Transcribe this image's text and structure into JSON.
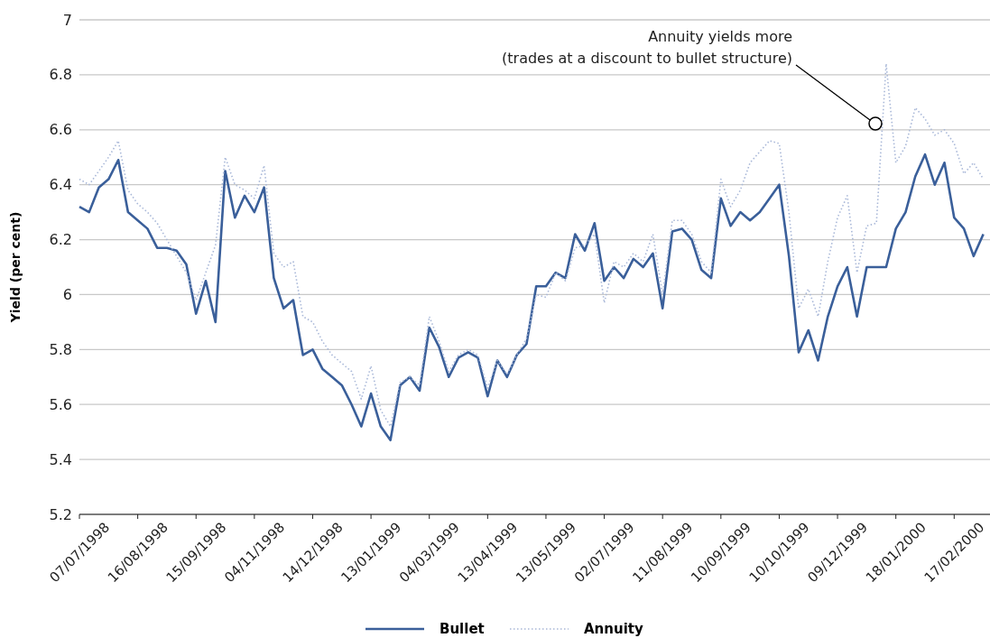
{
  "chart_data": {
    "type": "line",
    "ylabel": "Yield (per cent)",
    "categories": [
      "07/07/1998",
      null,
      null,
      null,
      null,
      null,
      "16/08/1998",
      null,
      null,
      null,
      null,
      null,
      "15/09/1998",
      null,
      null,
      null,
      null,
      null,
      "04/11/1998",
      null,
      null,
      null,
      null,
      null,
      "14/12/1998",
      null,
      null,
      null,
      null,
      null,
      "13/01/1999",
      null,
      null,
      null,
      null,
      null,
      "04/03/1999",
      null,
      null,
      null,
      null,
      null,
      "13/04/1999",
      null,
      null,
      null,
      null,
      null,
      "13/05/1999",
      null,
      null,
      null,
      null,
      null,
      "02/07/1999",
      null,
      null,
      null,
      null,
      null,
      "11/08/1999",
      null,
      null,
      null,
      null,
      null,
      "10/09/1999",
      null,
      null,
      null,
      null,
      null,
      "10/10/1999",
      null,
      null,
      null,
      null,
      null,
      "09/12/1999",
      null,
      null,
      null,
      null,
      null,
      "18/01/2000",
      null,
      null,
      null,
      null,
      null,
      "17/02/2000",
      null,
      null,
      null
    ],
    "series": [
      {
        "name": "Bullet",
        "color": "#3a5f9a",
        "line_style": "solid",
        "values": [
          6.32,
          6.3,
          6.39,
          6.42,
          6.49,
          6.3,
          6.27,
          6.24,
          6.17,
          6.17,
          6.16,
          6.11,
          5.93,
          6.05,
          5.9,
          6.45,
          6.28,
          6.36,
          6.3,
          6.39,
          6.06,
          5.95,
          5.98,
          5.78,
          5.8,
          5.73,
          5.7,
          5.67,
          5.6,
          5.52,
          5.64,
          5.52,
          5.47,
          5.67,
          5.7,
          5.65,
          5.88,
          5.81,
          5.7,
          5.77,
          5.79,
          5.77,
          5.63,
          5.76,
          5.7,
          5.78,
          5.82,
          6.03,
          6.03,
          6.08,
          6.06,
          6.22,
          6.16,
          6.26,
          6.05,
          6.1,
          6.06,
          6.13,
          6.1,
          6.15,
          5.95,
          6.23,
          6.24,
          6.2,
          6.09,
          6.06,
          6.35,
          6.25,
          6.3,
          6.27,
          6.3,
          6.35,
          6.4,
          6.14,
          5.79,
          5.87,
          5.76,
          5.92,
          6.03,
          6.1,
          5.92,
          6.1,
          6.1,
          6.1,
          6.24,
          6.3,
          6.43,
          6.51,
          6.4,
          6.48,
          6.28,
          6.24,
          6.14,
          6.22
        ]
      },
      {
        "name": "Annuity",
        "color": "#a9b8d8",
        "line_style": "dotted",
        "values": [
          6.42,
          6.4,
          6.45,
          6.5,
          6.56,
          6.38,
          6.33,
          6.3,
          6.26,
          6.2,
          6.14,
          6.08,
          5.98,
          6.08,
          6.18,
          6.5,
          6.4,
          6.38,
          6.35,
          6.47,
          6.15,
          6.1,
          6.12,
          5.92,
          5.9,
          5.83,
          5.78,
          5.75,
          5.72,
          5.62,
          5.74,
          5.58,
          5.52,
          5.68,
          5.7,
          5.67,
          5.92,
          5.83,
          5.72,
          5.78,
          5.8,
          5.78,
          5.66,
          5.76,
          5.71,
          5.78,
          5.84,
          6.0,
          5.99,
          6.08,
          6.05,
          6.17,
          6.18,
          6.22,
          5.97,
          6.12,
          6.1,
          6.15,
          6.12,
          6.22,
          6.0,
          6.27,
          6.27,
          6.22,
          6.12,
          6.08,
          6.42,
          6.32,
          6.38,
          6.48,
          6.52,
          6.56,
          6.55,
          6.3,
          5.95,
          6.02,
          5.92,
          6.12,
          6.28,
          6.36,
          6.08,
          6.25,
          6.26,
          6.84,
          6.48,
          6.54,
          6.68,
          6.64,
          6.58,
          6.6,
          6.55,
          6.44,
          6.48,
          6.42
        ]
      }
    ],
    "ylim": [
      5.2,
      7
    ],
    "yticks": [
      5.2,
      5.4,
      5.6,
      5.8,
      6,
      6.2,
      6.4,
      6.6,
      6.8,
      7
    ],
    "grid": "y",
    "legend": "bottom",
    "annotations": [
      "Annuity yields more\n(trades at a discount to bullet structure)"
    ]
  }
}
